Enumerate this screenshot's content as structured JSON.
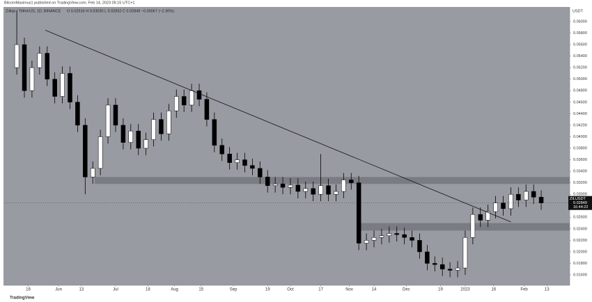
{
  "chart_data": {
    "type": "candlestick",
    "publisher": "BitcoinMaximus1 published on TradingView.com, Feb 14, 2023 05:15 UTC+1",
    "title": "Zilliqa / TetherUS, 1D, BINANCE",
    "ohlc_text": "O 0.02916 H 0.03030 L 0.02832 C 0.02849 −0.00067 (−2.30%)",
    "y_axis_label": "USDT",
    "footer": "TradingView",
    "x": [
      0,
      4,
      8,
      12,
      16,
      20,
      24,
      28,
      32,
      36,
      40,
      44,
      48,
      52,
      56,
      60,
      64,
      68,
      72,
      76,
      80,
      84,
      88,
      92,
      96,
      100,
      104,
      108,
      112,
      116,
      120,
      124,
      128,
      132,
      136,
      140,
      144,
      148,
      152,
      156,
      160,
      164,
      168,
      172,
      176,
      180,
      184,
      188,
      192,
      196,
      200,
      204,
      208,
      212,
      216,
      220,
      224,
      228,
      232,
      236,
      240,
      244,
      248,
      252,
      256,
      260,
      264,
      268,
      272,
      276
    ],
    "open": [
      0.052,
      0.056,
      0.048,
      0.052,
      0.0545,
      0.05,
      0.047,
      0.051,
      0.046,
      0.042,
      0.033,
      0.0345,
      0.04,
      0.0455,
      0.042,
      0.039,
      0.041,
      0.038,
      0.0395,
      0.043,
      0.0405,
      0.0445,
      0.047,
      0.0455,
      0.048,
      0.0465,
      0.043,
      0.0385,
      0.037,
      0.0355,
      0.036,
      0.035,
      0.0345,
      0.033,
      0.0315,
      0.0318,
      0.0312,
      0.0316,
      0.0305,
      0.031,
      0.03,
      0.0315,
      0.03,
      0.0305,
      0.0325,
      0.032,
      0.0215,
      0.022,
      0.0225,
      0.0228,
      0.0232,
      0.023,
      0.0225,
      0.022,
      0.02,
      0.018,
      0.0178,
      0.017,
      0.0168,
      0.0172,
      0.0225,
      0.0265,
      0.0255,
      0.027,
      0.0285,
      0.0275,
      0.03,
      0.029,
      0.0305,
      0.0295
    ],
    "high": [
      0.0619,
      0.0572,
      0.0532,
      0.0557,
      0.0557,
      0.0512,
      0.0522,
      0.0522,
      0.0472,
      0.0432,
      0.0357,
      0.0412,
      0.0467,
      0.0467,
      0.0432,
      0.0422,
      0.0422,
      0.0407,
      0.0442,
      0.0442,
      0.0457,
      0.0482,
      0.0482,
      0.0492,
      0.0492,
      0.0477,
      0.0442,
      0.0397,
      0.0382,
      0.0372,
      0.0372,
      0.0362,
      0.0357,
      0.0342,
      0.033,
      0.033,
      0.0328,
      0.0328,
      0.0322,
      0.0322,
      0.037,
      0.0327,
      0.0317,
      0.0337,
      0.0337,
      0.0332,
      0.0232,
      0.0237,
      0.024,
      0.0244,
      0.0244,
      0.0242,
      0.0237,
      0.0232,
      0.0212,
      0.0192,
      0.019,
      0.0182,
      0.0184,
      0.0237,
      0.0277,
      0.0277,
      0.0282,
      0.0297,
      0.0297,
      0.0312,
      0.0312,
      0.0317,
      0.0317,
      0.0307
    ],
    "low": [
      0.0508,
      0.0468,
      0.0468,
      0.0508,
      0.0488,
      0.0458,
      0.0458,
      0.0448,
      0.0408,
      0.03,
      0.0318,
      0.0333,
      0.0388,
      0.0408,
      0.0378,
      0.0378,
      0.0368,
      0.0368,
      0.0383,
      0.0393,
      0.0393,
      0.0433,
      0.0443,
      0.0443,
      0.0453,
      0.0418,
      0.0373,
      0.0358,
      0.0343,
      0.0343,
      0.0338,
      0.0333,
      0.0318,
      0.0303,
      0.0303,
      0.03,
      0.03,
      0.0293,
      0.0293,
      0.0288,
      0.0288,
      0.0288,
      0.0288,
      0.0293,
      0.0308,
      0.0203,
      0.0203,
      0.0208,
      0.0213,
      0.0216,
      0.0218,
      0.0213,
      0.0208,
      0.0188,
      0.0168,
      0.0166,
      0.0158,
      0.0156,
      0.0156,
      0.016,
      0.0213,
      0.0243,
      0.0243,
      0.0258,
      0.0263,
      0.0263,
      0.0278,
      0.0278,
      0.0283,
      0.0273
    ],
    "close": [
      0.056,
      0.048,
      0.052,
      0.0545,
      0.05,
      0.047,
      0.051,
      0.046,
      0.042,
      0.033,
      0.0345,
      0.04,
      0.0455,
      0.042,
      0.039,
      0.041,
      0.038,
      0.0395,
      0.043,
      0.0405,
      0.0445,
      0.047,
      0.0455,
      0.048,
      0.0465,
      0.043,
      0.0385,
      0.037,
      0.0355,
      0.036,
      0.035,
      0.0345,
      0.033,
      0.0315,
      0.0318,
      0.0312,
      0.0316,
      0.0305,
      0.031,
      0.03,
      0.0315,
      0.03,
      0.0305,
      0.0325,
      0.032,
      0.0215,
      0.022,
      0.0225,
      0.0228,
      0.0232,
      0.023,
      0.0225,
      0.022,
      0.02,
      0.018,
      0.0178,
      0.017,
      0.0168,
      0.0172,
      0.0225,
      0.0265,
      0.0255,
      0.027,
      0.0285,
      0.0275,
      0.03,
      0.029,
      0.0305,
      0.0295,
      0.0285
    ],
    "up_color": "#ffffff",
    "down_color": "#000000",
    "background": "#999ba3",
    "xlim": [
      -7,
      291
    ],
    "xticks": [
      {
        "value": 6,
        "label": "16"
      },
      {
        "value": 22,
        "label": "Jun"
      },
      {
        "value": 34,
        "label": "13"
      },
      {
        "value": 52,
        "label": "Jul"
      },
      {
        "value": 69,
        "label": "18"
      },
      {
        "value": 83,
        "label": "Aug"
      },
      {
        "value": 97,
        "label": "15"
      },
      {
        "value": 114,
        "label": "Sep"
      },
      {
        "value": 132,
        "label": "19"
      },
      {
        "value": 144,
        "label": "Oct"
      },
      {
        "value": 160,
        "label": "17"
      },
      {
        "value": 175,
        "label": "Nov"
      },
      {
        "value": 188,
        "label": "14"
      },
      {
        "value": 205,
        "label": "Dec"
      },
      {
        "value": 223,
        "label": "19"
      },
      {
        "value": 236,
        "label": "2023"
      },
      {
        "value": 251,
        "label": "16"
      },
      {
        "value": 267,
        "label": "Feb"
      },
      {
        "value": 279,
        "label": "13"
      }
    ],
    "ylim": [
      0.01419,
      0.06254
    ],
    "yticks": [
      {
        "value": 0.016,
        "label": "0.01600"
      },
      {
        "value": 0.018,
        "label": "0.01800"
      },
      {
        "value": 0.02,
        "label": "0.02000"
      },
      {
        "value": 0.022,
        "label": "0.02200"
      },
      {
        "value": 0.024,
        "label": "0.02400"
      },
      {
        "value": 0.026,
        "label": "0.02600"
      },
      {
        "value": 0.028,
        "label": "0.02800"
      },
      {
        "value": 0.03,
        "label": "0.03000"
      },
      {
        "value": 0.032,
        "label": "0.03200"
      },
      {
        "value": 0.034,
        "label": "0.03400"
      },
      {
        "value": 0.036,
        "label": "0.03600"
      },
      {
        "value": 0.038,
        "label": "0.03800"
      },
      {
        "value": 0.04,
        "label": "0.04000"
      },
      {
        "value": 0.042,
        "label": "0.04200"
      },
      {
        "value": 0.044,
        "label": "0.04400"
      },
      {
        "value": 0.046,
        "label": "0.04600"
      },
      {
        "value": 0.048,
        "label": "0.04800"
      },
      {
        "value": 0.05,
        "label": "0.05000"
      },
      {
        "value": 0.052,
        "label": "0.05200"
      },
      {
        "value": 0.054,
        "label": "0.05400"
      },
      {
        "value": 0.056,
        "label": "0.05600"
      },
      {
        "value": 0.058,
        "label": "0.05800"
      },
      {
        "value": 0.06,
        "label": "0.06000"
      }
    ],
    "trendline": {
      "x": [
        15,
        260
      ],
      "y": [
        0.0585,
        0.0252
      ]
    },
    "zones": [
      {
        "from": 41,
        "y": [
          0.0318,
          0.033
        ]
      },
      {
        "from": 180,
        "y": [
          0.0237,
          0.025
        ]
      }
    ],
    "last_price": {
      "symbol": "ZILUSDT",
      "value": 0.02849,
      "countdown": "16:44:22"
    }
  }
}
